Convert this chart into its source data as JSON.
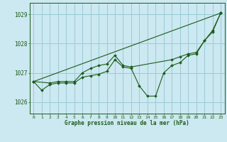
{
  "title": "Graphe pression niveau de la mer (hPa)",
  "background_color": "#cce8f0",
  "grid_color": "#99ccd8",
  "line_color": "#1a5c1a",
  "marker_color": "#1a5c1a",
  "xlim": [
    -0.5,
    23.5
  ],
  "ylim": [
    1025.6,
    1029.4
  ],
  "yticks": [
    1026,
    1027,
    1028,
    1029
  ],
  "xticks": [
    0,
    1,
    2,
    3,
    4,
    5,
    6,
    7,
    8,
    9,
    10,
    11,
    12,
    13,
    14,
    15,
    16,
    17,
    18,
    19,
    20,
    21,
    22,
    23
  ],
  "series1_x": [
    0,
    1,
    2,
    3,
    4,
    5,
    6,
    7,
    8,
    9,
    10,
    11,
    12,
    13,
    14,
    15,
    16,
    17,
    18,
    19,
    20,
    21,
    22,
    23
  ],
  "series1_y": [
    1026.7,
    1026.4,
    1026.6,
    1026.65,
    1026.65,
    1026.65,
    1026.85,
    1026.9,
    1026.95,
    1027.05,
    1027.45,
    1027.2,
    1027.15,
    1026.55,
    1026.2,
    1026.2,
    1027.0,
    1027.25,
    1027.35,
    1027.6,
    1027.65,
    1028.1,
    1028.4,
    1029.05
  ],
  "series2_x": [
    0,
    2,
    3,
    4,
    5,
    6,
    7,
    8,
    9,
    10,
    11,
    12,
    17,
    18,
    19,
    20,
    21,
    22,
    23
  ],
  "series2_y": [
    1026.7,
    1026.65,
    1026.7,
    1026.7,
    1026.7,
    1027.0,
    1027.15,
    1027.25,
    1027.3,
    1027.6,
    1027.25,
    1027.2,
    1027.45,
    1027.55,
    1027.65,
    1027.7,
    1028.1,
    1028.45,
    1029.05
  ],
  "series3_x": [
    0,
    23
  ],
  "series3_y": [
    1026.7,
    1029.05
  ]
}
